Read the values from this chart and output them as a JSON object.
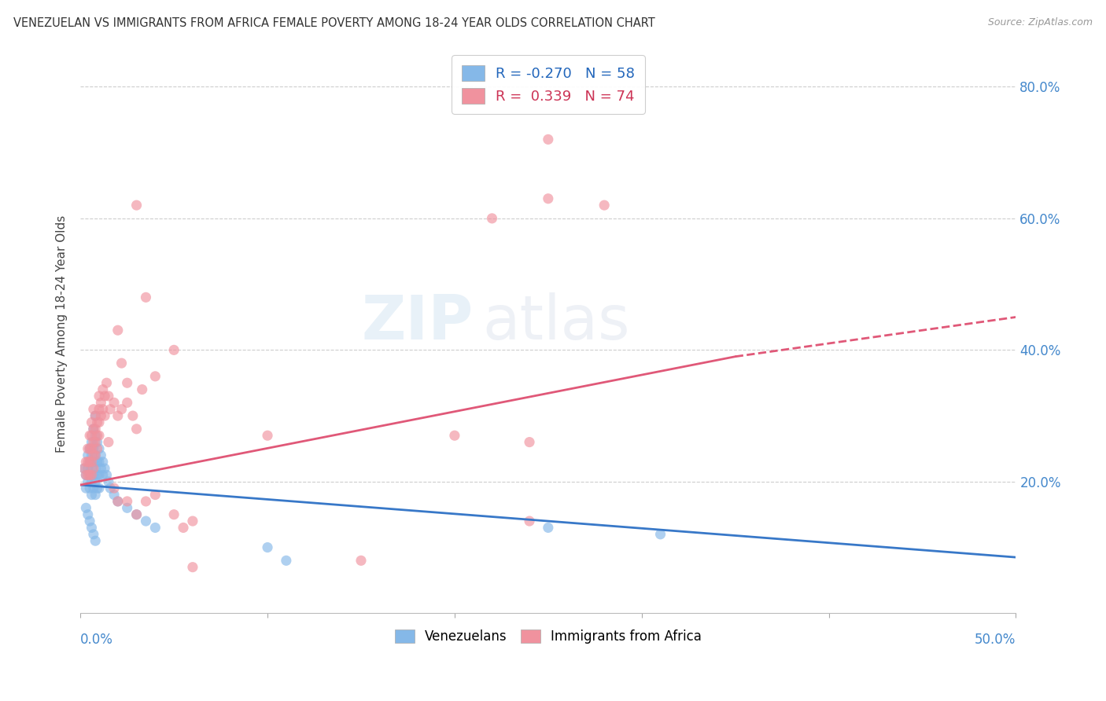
{
  "title": "VENEZUELAN VS IMMIGRANTS FROM AFRICA FEMALE POVERTY AMONG 18-24 YEAR OLDS CORRELATION CHART",
  "source": "Source: ZipAtlas.com",
  "ylabel": "Female Poverty Among 18-24 Year Olds",
  "ylabel_right_ticks": [
    "80.0%",
    "60.0%",
    "40.0%",
    "20.0%"
  ],
  "ylabel_right_vals": [
    0.8,
    0.6,
    0.4,
    0.2
  ],
  "venezuelan_color": "#85b8e8",
  "africa_color": "#f0929e",
  "trend_venezuelan_color": "#3878c8",
  "trend_africa_color": "#e05878",
  "watermark_text": "ZIPatlas",
  "xlim": [
    0.0,
    0.5
  ],
  "ylim": [
    0.0,
    0.85
  ],
  "trend_ven_x0": 0.0,
  "trend_ven_y0": 0.195,
  "trend_ven_x1": 0.5,
  "trend_ven_y1": 0.085,
  "trend_afr_x0": 0.0,
  "trend_afr_y0": 0.195,
  "trend_afr_x1": 0.35,
  "trend_afr_y1": 0.39,
  "trend_afr_dash_x0": 0.35,
  "trend_afr_dash_y0": 0.39,
  "trend_afr_dash_x1": 0.5,
  "trend_afr_dash_y1": 0.45,
  "venezuelan_points": [
    [
      0.002,
      0.22
    ],
    [
      0.003,
      0.21
    ],
    [
      0.003,
      0.19
    ],
    [
      0.004,
      0.24
    ],
    [
      0.004,
      0.22
    ],
    [
      0.004,
      0.2
    ],
    [
      0.005,
      0.25
    ],
    [
      0.005,
      0.23
    ],
    [
      0.005,
      0.21
    ],
    [
      0.005,
      0.19
    ],
    [
      0.006,
      0.26
    ],
    [
      0.006,
      0.24
    ],
    [
      0.006,
      0.22
    ],
    [
      0.006,
      0.2
    ],
    [
      0.006,
      0.18
    ],
    [
      0.007,
      0.28
    ],
    [
      0.007,
      0.25
    ],
    [
      0.007,
      0.23
    ],
    [
      0.007,
      0.21
    ],
    [
      0.007,
      0.19
    ],
    [
      0.008,
      0.3
    ],
    [
      0.008,
      0.27
    ],
    [
      0.008,
      0.24
    ],
    [
      0.008,
      0.22
    ],
    [
      0.008,
      0.2
    ],
    [
      0.008,
      0.18
    ],
    [
      0.009,
      0.26
    ],
    [
      0.009,
      0.23
    ],
    [
      0.009,
      0.21
    ],
    [
      0.009,
      0.19
    ],
    [
      0.01,
      0.25
    ],
    [
      0.01,
      0.23
    ],
    [
      0.01,
      0.21
    ],
    [
      0.01,
      0.19
    ],
    [
      0.011,
      0.24
    ],
    [
      0.011,
      0.22
    ],
    [
      0.012,
      0.23
    ],
    [
      0.012,
      0.21
    ],
    [
      0.013,
      0.22
    ],
    [
      0.014,
      0.21
    ],
    [
      0.015,
      0.2
    ],
    [
      0.016,
      0.19
    ],
    [
      0.018,
      0.18
    ],
    [
      0.02,
      0.17
    ],
    [
      0.025,
      0.16
    ],
    [
      0.03,
      0.15
    ],
    [
      0.035,
      0.14
    ],
    [
      0.04,
      0.13
    ],
    [
      0.003,
      0.16
    ],
    [
      0.004,
      0.15
    ],
    [
      0.005,
      0.14
    ],
    [
      0.006,
      0.13
    ],
    [
      0.007,
      0.12
    ],
    [
      0.008,
      0.11
    ],
    [
      0.25,
      0.13
    ],
    [
      0.31,
      0.12
    ],
    [
      0.1,
      0.1
    ],
    [
      0.11,
      0.08
    ]
  ],
  "africa_points": [
    [
      0.002,
      0.22
    ],
    [
      0.003,
      0.23
    ],
    [
      0.003,
      0.21
    ],
    [
      0.004,
      0.25
    ],
    [
      0.004,
      0.23
    ],
    [
      0.004,
      0.21
    ],
    [
      0.005,
      0.27
    ],
    [
      0.005,
      0.25
    ],
    [
      0.005,
      0.23
    ],
    [
      0.005,
      0.21
    ],
    [
      0.006,
      0.29
    ],
    [
      0.006,
      0.27
    ],
    [
      0.006,
      0.25
    ],
    [
      0.006,
      0.23
    ],
    [
      0.006,
      0.21
    ],
    [
      0.007,
      0.31
    ],
    [
      0.007,
      0.28
    ],
    [
      0.007,
      0.26
    ],
    [
      0.007,
      0.24
    ],
    [
      0.007,
      0.22
    ],
    [
      0.008,
      0.3
    ],
    [
      0.008,
      0.28
    ],
    [
      0.008,
      0.26
    ],
    [
      0.008,
      0.24
    ],
    [
      0.009,
      0.29
    ],
    [
      0.009,
      0.27
    ],
    [
      0.009,
      0.25
    ],
    [
      0.01,
      0.33
    ],
    [
      0.01,
      0.31
    ],
    [
      0.01,
      0.29
    ],
    [
      0.01,
      0.27
    ],
    [
      0.011,
      0.32
    ],
    [
      0.011,
      0.3
    ],
    [
      0.012,
      0.34
    ],
    [
      0.012,
      0.31
    ],
    [
      0.013,
      0.33
    ],
    [
      0.013,
      0.3
    ],
    [
      0.014,
      0.35
    ],
    [
      0.015,
      0.33
    ],
    [
      0.016,
      0.31
    ],
    [
      0.018,
      0.32
    ],
    [
      0.02,
      0.3
    ],
    [
      0.022,
      0.31
    ],
    [
      0.025,
      0.32
    ],
    [
      0.028,
      0.3
    ],
    [
      0.03,
      0.28
    ],
    [
      0.033,
      0.34
    ],
    [
      0.035,
      0.48
    ],
    [
      0.04,
      0.36
    ],
    [
      0.2,
      0.27
    ],
    [
      0.24,
      0.14
    ],
    [
      0.02,
      0.43
    ],
    [
      0.022,
      0.38
    ],
    [
      0.025,
      0.35
    ],
    [
      0.015,
      0.26
    ],
    [
      0.018,
      0.19
    ],
    [
      0.02,
      0.17
    ],
    [
      0.025,
      0.17
    ],
    [
      0.03,
      0.15
    ],
    [
      0.035,
      0.17
    ],
    [
      0.04,
      0.18
    ],
    [
      0.05,
      0.15
    ],
    [
      0.055,
      0.13
    ],
    [
      0.06,
      0.14
    ],
    [
      0.25,
      0.63
    ],
    [
      0.28,
      0.62
    ],
    [
      0.22,
      0.6
    ],
    [
      0.25,
      0.72
    ],
    [
      0.03,
      0.62
    ],
    [
      0.24,
      0.26
    ],
    [
      0.05,
      0.4
    ],
    [
      0.1,
      0.27
    ],
    [
      0.06,
      0.07
    ],
    [
      0.15,
      0.08
    ]
  ]
}
